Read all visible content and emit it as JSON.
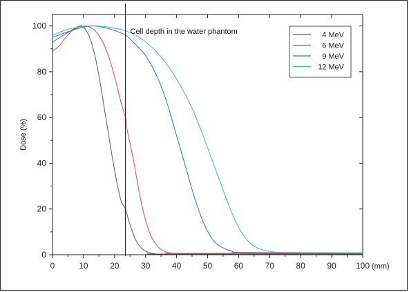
{
  "chart_data": {
    "type": "line",
    "title": "",
    "xlabel": "(mm)",
    "ylabel": "Dose (%)",
    "xlim": [
      0,
      100
    ],
    "ylim": [
      0,
      105
    ],
    "x_ticks": [
      0,
      10,
      20,
      30,
      40,
      50,
      60,
      70,
      80,
      90,
      100
    ],
    "y_ticks": [
      0,
      20,
      40,
      60,
      80,
      100
    ],
    "grid": false,
    "legend_position": "top-right",
    "annotation": {
      "text": "Cell depth in the water phantom",
      "x": 23.5
    },
    "series": [
      {
        "name": "4 MeV",
        "color": "#5a5a5a",
        "points": [
          [
            0,
            93
          ],
          [
            3,
            95.5
          ],
          [
            6,
            98
          ],
          [
            8,
            99.5
          ],
          [
            9,
            100
          ],
          [
            10,
            99.5
          ],
          [
            12,
            95
          ],
          [
            14,
            85
          ],
          [
            16,
            70
          ],
          [
            18,
            53
          ],
          [
            20,
            37
          ],
          [
            22,
            24
          ],
          [
            23.5,
            20
          ],
          [
            25,
            13
          ],
          [
            27,
            6
          ],
          [
            29,
            2.5
          ],
          [
            31,
            1
          ],
          [
            33,
            0.5
          ],
          [
            36,
            0.3
          ],
          [
            100,
            0.3
          ]
        ]
      },
      {
        "name": "6 MeV",
        "color": "#e8474b",
        "points": [
          [
            0,
            89
          ],
          [
            2,
            91
          ],
          [
            4,
            94.5
          ],
          [
            6,
            97.5
          ],
          [
            8,
            99.2
          ],
          [
            10,
            100
          ],
          [
            12,
            99.5
          ],
          [
            14,
            97.5
          ],
          [
            16,
            93.5
          ],
          [
            18,
            87
          ],
          [
            20,
            78
          ],
          [
            22,
            67
          ],
          [
            23.5,
            60
          ],
          [
            24,
            55
          ],
          [
            26,
            42
          ],
          [
            28,
            27
          ],
          [
            30,
            15
          ],
          [
            32,
            7.5
          ],
          [
            34,
            3.5
          ],
          [
            36,
            1.5
          ],
          [
            38,
            0.8
          ],
          [
            42,
            0.6
          ],
          [
            100,
            0.6
          ]
        ]
      },
      {
        "name": "9 MeV",
        "color": "#2f6fc9",
        "points": [
          [
            0,
            95
          ],
          [
            5,
            97.5
          ],
          [
            10,
            99.5
          ],
          [
            13,
            100
          ],
          [
            16,
            99.5
          ],
          [
            20,
            98
          ],
          [
            23.5,
            96
          ],
          [
            26,
            93
          ],
          [
            30,
            87
          ],
          [
            34,
            77
          ],
          [
            37,
            66
          ],
          [
            40,
            52
          ],
          [
            43,
            38
          ],
          [
            46,
            24
          ],
          [
            49,
            13
          ],
          [
            52,
            6
          ],
          [
            55,
            3
          ],
          [
            58,
            1.5
          ],
          [
            62,
            1
          ],
          [
            100,
            0.8
          ]
        ]
      },
      {
        "name": "12 MeV",
        "color": "#3fbf9a",
        "points": [
          [
            0,
            96
          ],
          [
            5,
            98.5
          ],
          [
            10,
            99.8
          ],
          [
            14,
            100
          ],
          [
            18,
            99.5
          ],
          [
            22,
            98.5
          ],
          [
            26,
            96.5
          ],
          [
            30,
            93
          ],
          [
            34,
            88
          ],
          [
            38,
            81
          ],
          [
            42,
            72
          ],
          [
            45,
            64
          ],
          [
            48,
            54
          ],
          [
            51,
            43
          ],
          [
            54,
            32
          ],
          [
            57,
            21
          ],
          [
            60,
            12
          ],
          [
            63,
            6
          ],
          [
            66,
            3
          ],
          [
            70,
            1.5
          ],
          [
            75,
            1
          ],
          [
            100,
            0.8
          ]
        ]
      }
    ]
  }
}
